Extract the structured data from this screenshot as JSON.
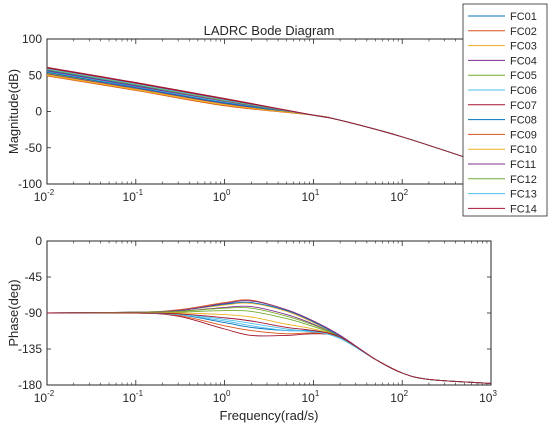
{
  "chart_data": [
    {
      "type": "line",
      "title": "LADRC Bode Diagram",
      "xlabel": "",
      "ylabel": "Magnitude(dB)",
      "xscale": "log",
      "xlim": [
        0.01,
        1000
      ],
      "ylim": [
        -100,
        100
      ],
      "xticks": [
        0.01,
        0.1,
        1,
        10,
        100,
        1000
      ],
      "yticks": [
        -100,
        -50,
        0,
        50,
        100
      ],
      "grid": false,
      "legend": "top-right, outside",
      "x": [
        0.01,
        0.1,
        1,
        10,
        20,
        100,
        1000
      ],
      "series": [
        {
          "name": "FC01",
          "color": "#0072BD",
          "values": [
            57,
            36,
            15,
            -5,
            -12,
            -35,
            -75
          ]
        },
        {
          "name": "FC02",
          "color": "#D95319",
          "values": [
            50,
            30,
            8,
            -5,
            -12,
            -35,
            -75
          ]
        },
        {
          "name": "FC03",
          "color": "#EDB120",
          "values": [
            51,
            31,
            10,
            -5,
            -12,
            -35,
            -75
          ]
        },
        {
          "name": "FC04",
          "color": "#7E2F8E",
          "values": [
            52,
            32,
            11,
            -5,
            -12,
            -35,
            -75
          ]
        },
        {
          "name": "FC05",
          "color": "#77AC30",
          "values": [
            53,
            33,
            12,
            -5,
            -12,
            -35,
            -75
          ]
        },
        {
          "name": "FC06",
          "color": "#4DBEEE",
          "values": [
            55,
            34,
            13,
            -5,
            -12,
            -35,
            -75
          ]
        },
        {
          "name": "FC07",
          "color": "#A2142F",
          "values": [
            61,
            40,
            18,
            -5,
            -12,
            -35,
            -75
          ]
        },
        {
          "name": "FC08",
          "color": "#0072BD",
          "values": [
            54,
            33,
            12,
            -5,
            -12,
            -35,
            -75
          ]
        },
        {
          "name": "FC09",
          "color": "#D95319",
          "values": [
            49,
            29,
            8,
            -5,
            -12,
            -35,
            -75
          ]
        },
        {
          "name": "FC10",
          "color": "#EDB120",
          "values": [
            50,
            30,
            9,
            -5,
            -12,
            -35,
            -75
          ]
        },
        {
          "name": "FC11",
          "color": "#7E2F8E",
          "values": [
            56,
            35,
            14,
            -5,
            -12,
            -35,
            -75
          ]
        },
        {
          "name": "FC12",
          "color": "#77AC30",
          "values": [
            58,
            37,
            15,
            -5,
            -12,
            -35,
            -75
          ]
        },
        {
          "name": "FC13",
          "color": "#4DBEEE",
          "values": [
            59,
            38,
            16,
            -5,
            -12,
            -35,
            -75
          ]
        },
        {
          "name": "FC14",
          "color": "#A2142F",
          "values": [
            60,
            39,
            17,
            -5,
            -12,
            -35,
            -75
          ]
        }
      ]
    },
    {
      "type": "line",
      "title": "",
      "xlabel": "Frequency(rad/s)",
      "ylabel": "Phase(deg)",
      "xscale": "log",
      "xlim": [
        0.01,
        1000
      ],
      "ylim": [
        -180,
        0
      ],
      "xticks": [
        0.01,
        0.1,
        1,
        10,
        100,
        1000
      ],
      "yticks": [
        -180,
        -135,
        -90,
        -45,
        0
      ],
      "grid": false,
      "x": [
        0.01,
        0.1,
        0.3,
        1,
        2,
        5,
        10,
        20,
        50,
        100,
        200,
        1000
      ],
      "series": [
        {
          "name": "FC01",
          "color": "#0072BD",
          "values": [
            -90,
            -90,
            -92,
            -102,
            -108,
            -112,
            -112,
            -120,
            -148,
            -165,
            -173,
            -178
          ]
        },
        {
          "name": "FC02",
          "color": "#D95319",
          "values": [
            -90,
            -89,
            -86,
            -77,
            -74,
            -86,
            -100,
            -118,
            -148,
            -165,
            -173,
            -178
          ]
        },
        {
          "name": "FC03",
          "color": "#EDB120",
          "values": [
            -90,
            -89,
            -87,
            -80,
            -78,
            -88,
            -102,
            -119,
            -148,
            -165,
            -173,
            -178
          ]
        },
        {
          "name": "FC04",
          "color": "#7E2F8E",
          "values": [
            -90,
            -89,
            -88,
            -83,
            -82,
            -92,
            -104,
            -120,
            -148,
            -165,
            -173,
            -178
          ]
        },
        {
          "name": "FC05",
          "color": "#77AC30",
          "values": [
            -90,
            -90,
            -89,
            -87,
            -88,
            -97,
            -107,
            -120,
            -148,
            -165,
            -173,
            -178
          ]
        },
        {
          "name": "FC06",
          "color": "#4DBEEE",
          "values": [
            -90,
            -90,
            -91,
            -98,
            -103,
            -110,
            -114,
            -121,
            -148,
            -165,
            -173,
            -178
          ]
        },
        {
          "name": "FC07",
          "color": "#A2142F",
          "values": [
            -90,
            -90,
            -94,
            -110,
            -118,
            -118,
            -116,
            -120,
            -148,
            -165,
            -173,
            -178
          ]
        },
        {
          "name": "FC08",
          "color": "#0072BD",
          "values": [
            -90,
            -89,
            -87,
            -79,
            -77,
            -87,
            -101,
            -119,
            -148,
            -165,
            -173,
            -178
          ]
        },
        {
          "name": "FC09",
          "color": "#D95319",
          "values": [
            -90,
            -90,
            -93,
            -106,
            -112,
            -116,
            -115,
            -120,
            -148,
            -165,
            -173,
            -178
          ]
        },
        {
          "name": "FC10",
          "color": "#EDB120",
          "values": [
            -90,
            -90,
            -90,
            -92,
            -95,
            -104,
            -110,
            -120,
            -148,
            -165,
            -173,
            -178
          ]
        },
        {
          "name": "FC11",
          "color": "#7E2F8E",
          "values": [
            -90,
            -89,
            -87,
            -78,
            -75,
            -86,
            -100,
            -118,
            -148,
            -165,
            -173,
            -178
          ]
        },
        {
          "name": "FC12",
          "color": "#77AC30",
          "values": [
            -90,
            -89,
            -88,
            -84,
            -84,
            -94,
            -105,
            -120,
            -148,
            -165,
            -173,
            -178
          ]
        },
        {
          "name": "FC13",
          "color": "#4DBEEE",
          "values": [
            -90,
            -90,
            -92,
            -100,
            -106,
            -112,
            -113,
            -122,
            -148,
            -165,
            -173,
            -178
          ]
        },
        {
          "name": "FC14",
          "color": "#A2142F",
          "values": [
            -90,
            -90,
            -91,
            -96,
            -100,
            -108,
            -112,
            -120,
            -148,
            -165,
            -173,
            -178
          ]
        }
      ]
    }
  ]
}
